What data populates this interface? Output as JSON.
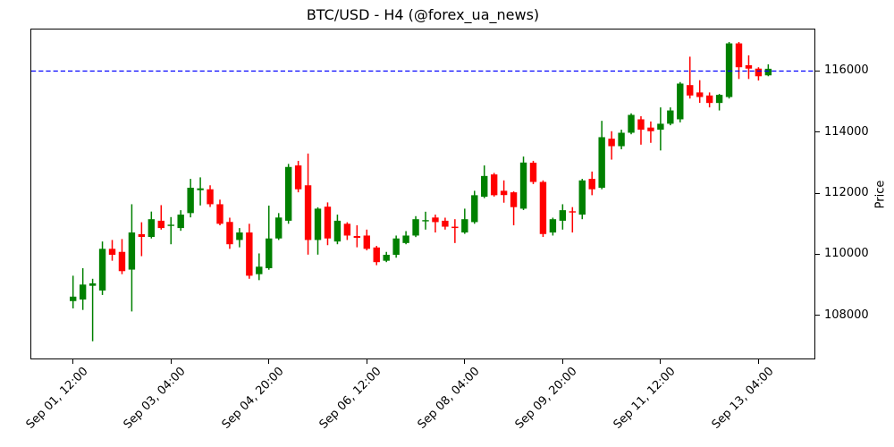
{
  "title": "BTC/USD - H4 (@forex_ua_news)",
  "chart_data": {
    "type": "candlestick",
    "title": "BTC/USD - H4 (@forex_ua_news)",
    "symbol": "BTC/USD",
    "timeframe": "H4",
    "ylabel": "Price",
    "ylabel_side": "right",
    "grid": false,
    "legend": null,
    "ylim": [
      106590,
      117360
    ],
    "yticks": [
      108000,
      110000,
      112000,
      114000,
      116000
    ],
    "xticks": [
      {
        "index": 0,
        "label": "Sep 01, 12:00"
      },
      {
        "index": 10,
        "label": "Sep 03, 04:00"
      },
      {
        "index": 20,
        "label": "Sep 04, 20:00"
      },
      {
        "index": 30,
        "label": "Sep 06, 12:00"
      },
      {
        "index": 40,
        "label": "Sep 08, 04:00"
      },
      {
        "index": 50,
        "label": "Sep 09, 20:00"
      },
      {
        "index": 60,
        "label": "Sep 11, 12:00"
      },
      {
        "index": 70,
        "label": "Sep 13, 04:00"
      }
    ],
    "hline": {
      "value": 116000,
      "color": "#0000ff",
      "style": "dashed"
    },
    "colors": {
      "up": "#008000",
      "down": "#ff0000",
      "background": "#ffffff",
      "spine": "#000000"
    },
    "candle_columns": [
      "time",
      "open",
      "high",
      "low",
      "close"
    ],
    "candles": [
      [
        "Sep 01, 12:00",
        108470,
        109300,
        108230,
        108615
      ],
      [
        "Sep 01, 16:00",
        108520,
        109545,
        108180,
        109010
      ],
      [
        "Sep 01, 20:00",
        108970,
        109200,
        107155,
        109050
      ],
      [
        "Sep 02, 00:00",
        108815,
        110420,
        108670,
        110180
      ],
      [
        "Sep 02, 04:00",
        110180,
        110470,
        109790,
        109985
      ],
      [
        "Sep 02, 08:00",
        110080,
        110500,
        109350,
        109450
      ],
      [
        "Sep 02, 12:00",
        109500,
        111640,
        108130,
        110715
      ],
      [
        "Sep 02, 16:00",
        110660,
        111050,
        109940,
        110570
      ],
      [
        "Sep 02, 20:00",
        110570,
        111400,
        110520,
        111150
      ],
      [
        "Sep 03, 00:00",
        111100,
        111610,
        110810,
        110860
      ],
      [
        "Sep 03, 04:00",
        110930,
        111220,
        110330,
        110970
      ],
      [
        "Sep 03, 08:00",
        110860,
        111445,
        110770,
        111300
      ],
      [
        "Sep 03, 12:00",
        111350,
        112470,
        111210,
        112180
      ],
      [
        "Sep 03, 16:00",
        112100,
        112520,
        111600,
        112160
      ],
      [
        "Sep 03, 20:00",
        112130,
        112260,
        111550,
        111640
      ],
      [
        "Sep 04, 00:00",
        111640,
        111790,
        110950,
        111000
      ],
      [
        "Sep 04, 04:00",
        111060,
        111200,
        110180,
        110330
      ],
      [
        "Sep 04, 08:00",
        110470,
        110860,
        110230,
        110715
      ],
      [
        "Sep 04, 12:00",
        110715,
        111000,
        109200,
        109300
      ],
      [
        "Sep 04, 16:00",
        109350,
        110030,
        109155,
        109595
      ],
      [
        "Sep 04, 20:00",
        109545,
        111595,
        109495,
        110520
      ],
      [
        "Sep 05, 00:00",
        110520,
        111350,
        110470,
        111205
      ],
      [
        "Sep 05, 04:00",
        111100,
        112960,
        111000,
        112860
      ],
      [
        "Sep 05, 08:00",
        112910,
        113060,
        112030,
        112130
      ],
      [
        "Sep 05, 12:00",
        112260,
        113300,
        109990,
        110470
      ],
      [
        "Sep 05, 16:00",
        110470,
        111540,
        109990,
        111495
      ],
      [
        "Sep 05, 20:00",
        111560,
        111700,
        110300,
        110520
      ],
      [
        "Sep 06, 00:00",
        110420,
        111300,
        110330,
        111100
      ],
      [
        "Sep 06, 04:00",
        111000,
        111050,
        110470,
        110615
      ],
      [
        "Sep 06, 08:00",
        110600,
        110950,
        110230,
        110540
      ],
      [
        "Sep 06, 12:00",
        110615,
        110810,
        110130,
        110180
      ],
      [
        "Sep 06, 16:00",
        110225,
        110275,
        109645,
        109745
      ],
      [
        "Sep 06, 20:00",
        109790,
        110080,
        109745,
        109985
      ],
      [
        "Sep 07, 00:00",
        109985,
        110615,
        109890,
        110520
      ],
      [
        "Sep 07, 04:00",
        110370,
        110760,
        110330,
        110615
      ],
      [
        "Sep 07, 08:00",
        110615,
        111250,
        110565,
        111150
      ],
      [
        "Sep 07, 12:00",
        111080,
        111395,
        110810,
        111120
      ],
      [
        "Sep 07, 16:00",
        111205,
        111300,
        110715,
        111055
      ],
      [
        "Sep 07, 20:00",
        111100,
        111200,
        110810,
        110905
      ],
      [
        "Sep 08, 00:00",
        110905,
        111150,
        110370,
        110860
      ],
      [
        "Sep 08, 04:00",
        110715,
        111495,
        110670,
        111150
      ],
      [
        "Sep 08, 08:00",
        111055,
        112080,
        111000,
        111935
      ],
      [
        "Sep 08, 12:00",
        111885,
        112910,
        111840,
        112565
      ],
      [
        "Sep 08, 16:00",
        112615,
        112665,
        111890,
        111935
      ],
      [
        "Sep 08, 20:00",
        112080,
        112420,
        111690,
        111940
      ],
      [
        "Sep 09, 00:00",
        112030,
        112060,
        110950,
        111545
      ],
      [
        "Sep 09, 04:00",
        111495,
        113200,
        111450,
        113005
      ],
      [
        "Sep 09, 08:00",
        113000,
        113060,
        112300,
        112370
      ],
      [
        "Sep 09, 12:00",
        112370,
        112420,
        110570,
        110665
      ],
      [
        "Sep 09, 16:00",
        110715,
        111200,
        110615,
        111150
      ],
      [
        "Sep 09, 20:00",
        111100,
        111640,
        110810,
        111445
      ],
      [
        "Sep 10, 00:00",
        111410,
        111545,
        110715,
        111370
      ],
      [
        "Sep 10, 04:00",
        111300,
        112470,
        111150,
        112420
      ],
      [
        "Sep 10, 08:00",
        112470,
        112710,
        111935,
        112130
      ],
      [
        "Sep 10, 12:00",
        112180,
        114370,
        112130,
        113835
      ],
      [
        "Sep 10, 16:00",
        113785,
        114030,
        113100,
        113540
      ],
      [
        "Sep 10, 20:00",
        113540,
        114080,
        113440,
        113980
      ],
      [
        "Sep 11, 00:00",
        113980,
        114615,
        113930,
        114565
      ],
      [
        "Sep 11, 04:00",
        114420,
        114520,
        113590,
        114080
      ],
      [
        "Sep 11, 08:00",
        114150,
        114350,
        113650,
        114030
      ],
      [
        "Sep 11, 12:00",
        114080,
        114810,
        113400,
        114275
      ],
      [
        "Sep 11, 16:00",
        114275,
        114810,
        114225,
        114710
      ],
      [
        "Sep 11, 20:00",
        114420,
        115640,
        114320,
        115590
      ],
      [
        "Sep 12, 00:00",
        115540,
        116470,
        115100,
        115200
      ],
      [
        "Sep 12, 04:00",
        115300,
        115700,
        114960,
        115150
      ],
      [
        "Sep 12, 08:00",
        115200,
        115300,
        114810,
        114955
      ],
      [
        "Sep 12, 12:00",
        114955,
        115250,
        114710,
        115220
      ],
      [
        "Sep 12, 16:00",
        115150,
        116950,
        115100,
        116905
      ],
      [
        "Sep 12, 20:00",
        116905,
        116950,
        115740,
        116125
      ],
      [
        "Sep 13, 00:00",
        116190,
        116515,
        115740,
        116080
      ],
      [
        "Sep 13, 04:00",
        116080,
        116125,
        115690,
        115830
      ],
      [
        "Sep 13, 08:00",
        115860,
        116220,
        115830,
        116075
      ]
    ]
  }
}
